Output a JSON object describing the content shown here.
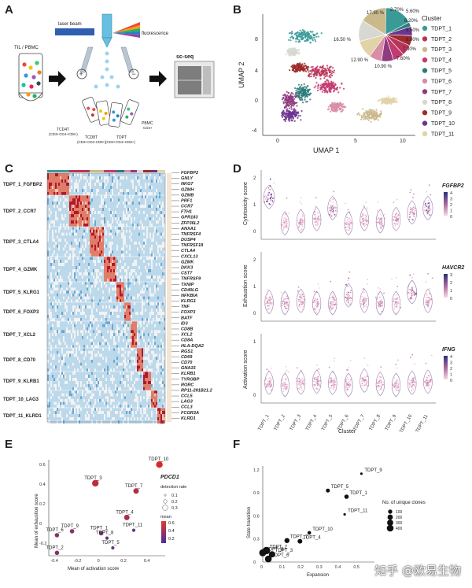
{
  "panels": {
    "a": "A",
    "b": "B",
    "c": "C",
    "d": "D",
    "e": "E",
    "f": "F"
  },
  "panel_a": {
    "laser": "laser beam",
    "fluor": "fluorescence",
    "til": "TIL / PBMC",
    "scseq": "sc-seq",
    "tubes": [
      {
        "name": "TCD4T",
        "sub": "(CD3+CD4+CD8-)"
      },
      {
        "name": "TCD8T",
        "sub": "(CD3+CD4-CD8+)"
      },
      {
        "name": "TDPT",
        "sub": "(CD3+CD4+CD8+)"
      },
      {
        "name": "PBMC",
        "sub": "CD3+"
      }
    ]
  },
  "umap": {
    "xlabel": "UMAP 1",
    "ylabel": "UMAP 2",
    "xticks": [
      "0",
      "5",
      "10"
    ],
    "yticks": [
      "8",
      "4",
      "0",
      "-4"
    ],
    "legend_title": "Cluster",
    "clusters": [
      {
        "name": "TDPT_1",
        "color": "#3a9a98"
      },
      {
        "name": "TDPT_2",
        "color": "#b8355a"
      },
      {
        "name": "TDPT_3",
        "color": "#c9b98b"
      },
      {
        "name": "TDPT_4",
        "color": "#c23b6e"
      },
      {
        "name": "TDPT_5",
        "color": "#2e7b7a"
      },
      {
        "name": "TDPT_6",
        "color": "#d88ea6"
      },
      {
        "name": "TDPT_7",
        "color": "#8f3b80"
      },
      {
        "name": "TDPT_8",
        "color": "#d8d8d2"
      },
      {
        "name": "TDPT_9",
        "color": "#9e2c2c"
      },
      {
        "name": "TDPT_10",
        "color": "#6d3491"
      },
      {
        "name": "TDPT_11",
        "color": "#e2d2a8"
      }
    ],
    "pie_labels": [
      "17.30 %",
      "2.70%",
      "5.60%",
      "6.20%",
      "6.50%",
      "6.80%",
      "7.30%",
      "7.60%",
      "10.90 %",
      "12.90 %",
      "16.50 %"
    ]
  },
  "heatmap": {
    "clusters": [
      "TDPT_1_FGFBP2",
      "TDPT_2_CCR7",
      "TDPT_3_CTLA4",
      "TDPT_4_GZMK",
      "TDPT_5_KLRG1",
      "TDPT_6_FOXP3",
      "TDPT_7_XCL2",
      "TDPT_8_CD70",
      "TDPT_9_KLRB1",
      "TDPT_10_LAG3",
      "TDPT_11_KLRD1"
    ],
    "genes": [
      "FGFBP2",
      "GNLY",
      "NKG7",
      "GZMH",
      "GZMB",
      "PRF1",
      "CCR7",
      "FTH1",
      "GPR183",
      "ZFP36L2",
      "ANXA1",
      "TNFRSF4",
      "DUSP4",
      "TNFRSF18",
      "CTLA4",
      "CXCL13",
      "GZMK",
      "DKK3",
      "CST7",
      "TNFRSF9",
      "TXNIP",
      "CD40LG",
      "NFKBIA",
      "KLRG1",
      "TNF",
      "FOXP3",
      "BATF",
      "ID3",
      "CD8B",
      "XCL2",
      "CD8A",
      "HLA-DQA2",
      "RGS1",
      "CD69",
      "CD70",
      "GNA15",
      "KLRB1",
      "TYROBP",
      "RORC",
      "RP11-291B21.2",
      "CCL5",
      "LAG3",
      "CCL3",
      "FCGR3A",
      "KLRD1"
    ]
  },
  "violin": {
    "xlabel": "Cluster",
    "categories": [
      "TDPT_1",
      "TDPT_2",
      "TDPT_3",
      "TDPT_4",
      "TDPT_5",
      "TDPT_6",
      "TDPT_7",
      "TDPT_8",
      "TDPT_9",
      "TDPT_10",
      "TDPT_11"
    ],
    "panels": [
      {
        "ylabel": "Cytotoxicity score",
        "gene": "FGFBP2",
        "yticks": [
          "2",
          "1",
          "0"
        ],
        "cbar": [
          "4",
          "3",
          "2",
          "1",
          "0"
        ],
        "medians": [
          1.1,
          -0.1,
          0.0,
          0.1,
          0.6,
          -0.1,
          0.1,
          0.0,
          0.1,
          0.4,
          0.6
        ]
      },
      {
        "ylabel": "Exhaustion score",
        "gene": "HAVCR2",
        "yticks": [
          "2",
          "1",
          "0"
        ],
        "cbar": [
          "3",
          "2",
          "1",
          "0"
        ],
        "medians": [
          0.05,
          0.0,
          0.1,
          0.0,
          0.0,
          0.35,
          0.1,
          0.0,
          0.0,
          0.5,
          0.1
        ]
      },
      {
        "ylabel": "Activation score",
        "gene": "IFNG",
        "yticks": [
          "1",
          "0"
        ],
        "cbar": [
          "4",
          "3",
          "2",
          "1",
          "0"
        ],
        "medians": [
          0.1,
          0.0,
          0.1,
          0.15,
          0.1,
          0.0,
          0.2,
          0.05,
          0.0,
          0.1,
          0.15
        ]
      }
    ]
  },
  "chart_data": [
    {
      "type": "scatter",
      "title": "",
      "xlabel": "Mean of activation score",
      "ylabel": "Mean of exhaustion score",
      "xticks": [
        "-0.4",
        "-0.2",
        "0",
        "0.2",
        "0.4"
      ],
      "yticks": [
        "0.6",
        "0.4",
        "0.2",
        "0",
        "-0.2"
      ],
      "xlim": [
        -0.45,
        0.55
      ],
      "ylim": [
        -0.33,
        0.65
      ],
      "points": [
        {
          "label": "TDPT_10",
          "x": 0.5,
          "y": 0.6,
          "mean": 0.75,
          "rate": 0.3
        },
        {
          "label": "TDPT_3",
          "x": -0.05,
          "y": 0.41,
          "mean": 0.6,
          "rate": 0.3
        },
        {
          "label": "TDPT_7",
          "x": 0.3,
          "y": 0.33,
          "mean": 0.55,
          "rate": 0.25
        },
        {
          "label": "TDPT_4",
          "x": 0.22,
          "y": 0.06,
          "mean": 0.5,
          "rate": 0.25
        },
        {
          "label": "TDPT_11",
          "x": 0.28,
          "y": -0.07,
          "mean": 0.15,
          "rate": 0.15
        },
        {
          "label": "TDPT_9",
          "x": -0.25,
          "y": -0.08,
          "mean": 0.35,
          "rate": 0.2
        },
        {
          "label": "TDPT_1",
          "x": 0.0,
          "y": -0.1,
          "mean": 0.25,
          "rate": 0.2
        },
        {
          "label": "TDPT_6",
          "x": -0.38,
          "y": -0.12,
          "mean": 0.3,
          "rate": 0.2
        },
        {
          "label": "TDPT_8",
          "x": 0.05,
          "y": -0.15,
          "mean": 0.1,
          "rate": 0.15
        },
        {
          "label": "TDPT_5",
          "x": 0.1,
          "y": -0.25,
          "mean": 0.15,
          "rate": 0.15
        },
        {
          "label": "TDPT_2",
          "x": -0.38,
          "y": -0.3,
          "mean": 0.3,
          "rate": 0.2
        }
      ],
      "legend_gene": "PDCD1",
      "legend_size_title": "detection rate",
      "legend_size": [
        "0.1",
        "0.2",
        "0.3"
      ],
      "legend_color_title": "mean",
      "legend_color": [
        "0.6",
        "0.4",
        "0.2"
      ]
    },
    {
      "type": "scatter",
      "xlabel": "Expansion",
      "ylabel": "State transition",
      "xticks": [
        "0",
        "0.1",
        "0.2",
        "0.3",
        "0.4",
        "0.5"
      ],
      "yticks": [
        "0",
        "0.3",
        "0.6",
        "0.9",
        "1.2"
      ],
      "xlim": [
        0,
        0.6
      ],
      "ylim": [
        0,
        1.25
      ],
      "points": [
        {
          "label": "TDPT_9",
          "x": 0.53,
          "y": 1.15,
          "clones": 10
        },
        {
          "label": "TDPT_5",
          "x": 0.35,
          "y": 0.93,
          "clones": 60
        },
        {
          "label": "TDPT_1",
          "x": 0.45,
          "y": 0.85,
          "clones": 80
        },
        {
          "label": "TDPT_11",
          "x": 0.44,
          "y": 0.62,
          "clones": 10
        },
        {
          "label": "TDPT_10",
          "x": 0.25,
          "y": 0.38,
          "clones": 40
        },
        {
          "label": "TDPT_7",
          "x": 0.13,
          "y": 0.28,
          "clones": 120
        },
        {
          "label": "TDPT_4",
          "x": 0.2,
          "y": 0.27,
          "clones": 100
        },
        {
          "label": "TDPT_2",
          "x": 0.02,
          "y": 0.15,
          "clones": 350
        },
        {
          "label": "TDPT_3",
          "x": 0.05,
          "y": 0.1,
          "clones": 220
        },
        {
          "label": "TDPT_8",
          "x": 0.0,
          "y": 0.12,
          "clones": 300
        },
        {
          "label": "TDPT_6",
          "x": 0.03,
          "y": 0.04,
          "clones": 280
        }
      ],
      "legend_title": "No. of unique clones",
      "legend_values": [
        "100",
        "200",
        "300",
        "400"
      ]
    }
  ],
  "watermark": "知乎 @欧易生物"
}
